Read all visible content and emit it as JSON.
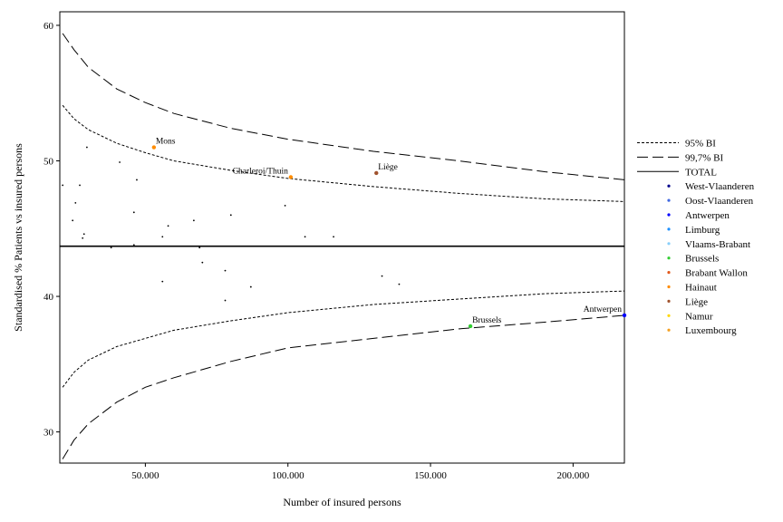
{
  "chart_data": {
    "type": "scatter",
    "xlabel": "Number of insured persons",
    "ylabel": "Standardised % Patients vs insured persons",
    "xlim": [
      20000,
      218000
    ],
    "ylim": [
      27.7,
      61
    ],
    "x_ticks": [
      50000,
      100000,
      150000,
      200000
    ],
    "x_tick_labels": [
      "50.000",
      "100.000",
      "150.000",
      "200.000"
    ],
    "y_ticks": [
      30,
      40,
      50,
      60
    ],
    "y_tick_labels": [
      "30",
      "40",
      "50",
      "60"
    ],
    "grid": false,
    "legend_position": "right",
    "total": 43.7,
    "bounds": [
      {
        "name": "95% BI",
        "style": "dotted",
        "x": [
          21000,
          25000,
          30000,
          40000,
          50000,
          60000,
          80000,
          100000,
          130000,
          160000,
          190000,
          218000
        ],
        "upper": [
          54.1,
          53.1,
          52.3,
          51.3,
          50.6,
          50.0,
          49.3,
          48.7,
          48.1,
          47.6,
          47.2,
          47.0
        ],
        "lower": [
          33.3,
          34.4,
          35.3,
          36.3,
          36.9,
          37.5,
          38.2,
          38.8,
          39.4,
          39.8,
          40.2,
          40.4
        ]
      },
      {
        "name": "99,7% BI",
        "style": "dashed",
        "x": [
          21000,
          25000,
          30000,
          40000,
          50000,
          60000,
          80000,
          100000,
          130000,
          160000,
          190000,
          218000
        ],
        "upper": [
          59.4,
          58.2,
          56.9,
          55.3,
          54.3,
          53.5,
          52.4,
          51.6,
          50.7,
          50.0,
          49.2,
          48.6
        ],
        "lower": [
          28.0,
          29.4,
          30.6,
          32.2,
          33.3,
          34.0,
          35.2,
          36.2,
          36.9,
          37.6,
          38.1,
          38.6
        ]
      }
    ],
    "legend": [
      {
        "label": "95% BI",
        "kind": "dotted",
        "color": "#000000"
      },
      {
        "label": "99,7% BI",
        "kind": "dashed",
        "color": "#000000"
      },
      {
        "label": "TOTAL",
        "kind": "solid",
        "color": "#000000"
      },
      {
        "label": "West-Vlaanderen",
        "kind": "dot",
        "color": "#00008b"
      },
      {
        "label": "Oost-Vlaanderen",
        "kind": "dot",
        "color": "#4169e1"
      },
      {
        "label": "Antwerpen",
        "kind": "dot",
        "color": "#0000ff"
      },
      {
        "label": "Limburg",
        "kind": "dot",
        "color": "#1e90ff"
      },
      {
        "label": "Vlaams-Brabant",
        "kind": "dot",
        "color": "#87cefa"
      },
      {
        "label": "Brussels",
        "kind": "dot",
        "color": "#32cd32"
      },
      {
        "label": "Brabant Wallon",
        "kind": "dot",
        "color": "#e2581c"
      },
      {
        "label": "Hainaut",
        "kind": "dot",
        "color": "#ff8c00"
      },
      {
        "label": "Liège",
        "kind": "dot",
        "color": "#a0522d"
      },
      {
        "label": "Namur",
        "kind": "dot",
        "color": "#ffd700"
      },
      {
        "label": "Luxembourg",
        "kind": "dot",
        "color": "#f4a020"
      }
    ],
    "labeled_points": [
      {
        "label": "Mons",
        "x": 53000,
        "y": 51.0,
        "color": "#ff8c00",
        "anchor": "right"
      },
      {
        "label": "Charleroi/Thuin",
        "x": 101000,
        "y": 48.8,
        "color": "#ff8c00",
        "anchor": "left"
      },
      {
        "label": "Liège",
        "x": 131000,
        "y": 49.1,
        "color": "#a0522d",
        "anchor": "right"
      },
      {
        "label": "Brussels",
        "x": 164000,
        "y": 37.8,
        "color": "#32cd32",
        "anchor": "right"
      },
      {
        "label": "Antwerpen",
        "x": 218000,
        "y": 38.6,
        "color": "#0000ff",
        "anchor": "left"
      }
    ],
    "small_points": [
      [
        21000,
        48.2
      ],
      [
        24500,
        45.6
      ],
      [
        25500,
        46.9
      ],
      [
        27000,
        48.2
      ],
      [
        28000,
        44.3
      ],
      [
        28500,
        44.6
      ],
      [
        29500,
        51.0
      ],
      [
        38000,
        43.6
      ],
      [
        41000,
        49.9
      ],
      [
        46000,
        43.8
      ],
      [
        46000,
        46.2
      ],
      [
        47000,
        48.6
      ],
      [
        56000,
        44.4
      ],
      [
        56000,
        41.1
      ],
      [
        58000,
        45.2
      ],
      [
        67000,
        45.6
      ],
      [
        69000,
        43.6
      ],
      [
        70000,
        42.5
      ],
      [
        78000,
        41.9
      ],
      [
        78000,
        39.7
      ],
      [
        80000,
        46.0
      ],
      [
        87000,
        40.7
      ],
      [
        99000,
        46.7
      ],
      [
        106000,
        44.4
      ],
      [
        116000,
        44.4
      ],
      [
        133000,
        41.5
      ],
      [
        139000,
        40.9
      ]
    ]
  }
}
